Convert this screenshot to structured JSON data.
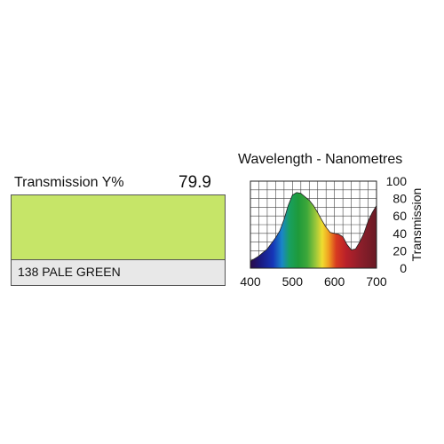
{
  "filter": {
    "transmission_label": "Transmission Y%",
    "transmission_value": "79.9",
    "name": "138 PALE GREEN",
    "swatch_color": "#c6e568"
  },
  "chart_data": {
    "type": "area",
    "title": "Wavelength - Nanometres",
    "xlabel": "",
    "ylabel": "Transmission",
    "xlim": [
      400,
      700
    ],
    "ylim": [
      0,
      100
    ],
    "x_ticks": [
      400,
      500,
      600,
      700
    ],
    "y_ticks": [
      0,
      20,
      40,
      60,
      80,
      100
    ],
    "grid": true,
    "fill": "visible-spectrum-gradient",
    "series": [
      {
        "x": [
          400,
          420,
          440,
          460,
          470,
          480,
          490,
          500,
          510,
          520,
          530,
          540,
          550,
          560,
          570,
          580,
          590,
          600,
          610,
          620,
          630,
          640,
          650,
          660,
          670,
          680,
          690,
          700
        ],
        "values": [
          8,
          14,
          22,
          35,
          43,
          56,
          72,
          84,
          87,
          86,
          82,
          78,
          72,
          64,
          55,
          47,
          41,
          40,
          39,
          36,
          27,
          21,
          22,
          30,
          40,
          54,
          64,
          72
        ]
      }
    ]
  }
}
